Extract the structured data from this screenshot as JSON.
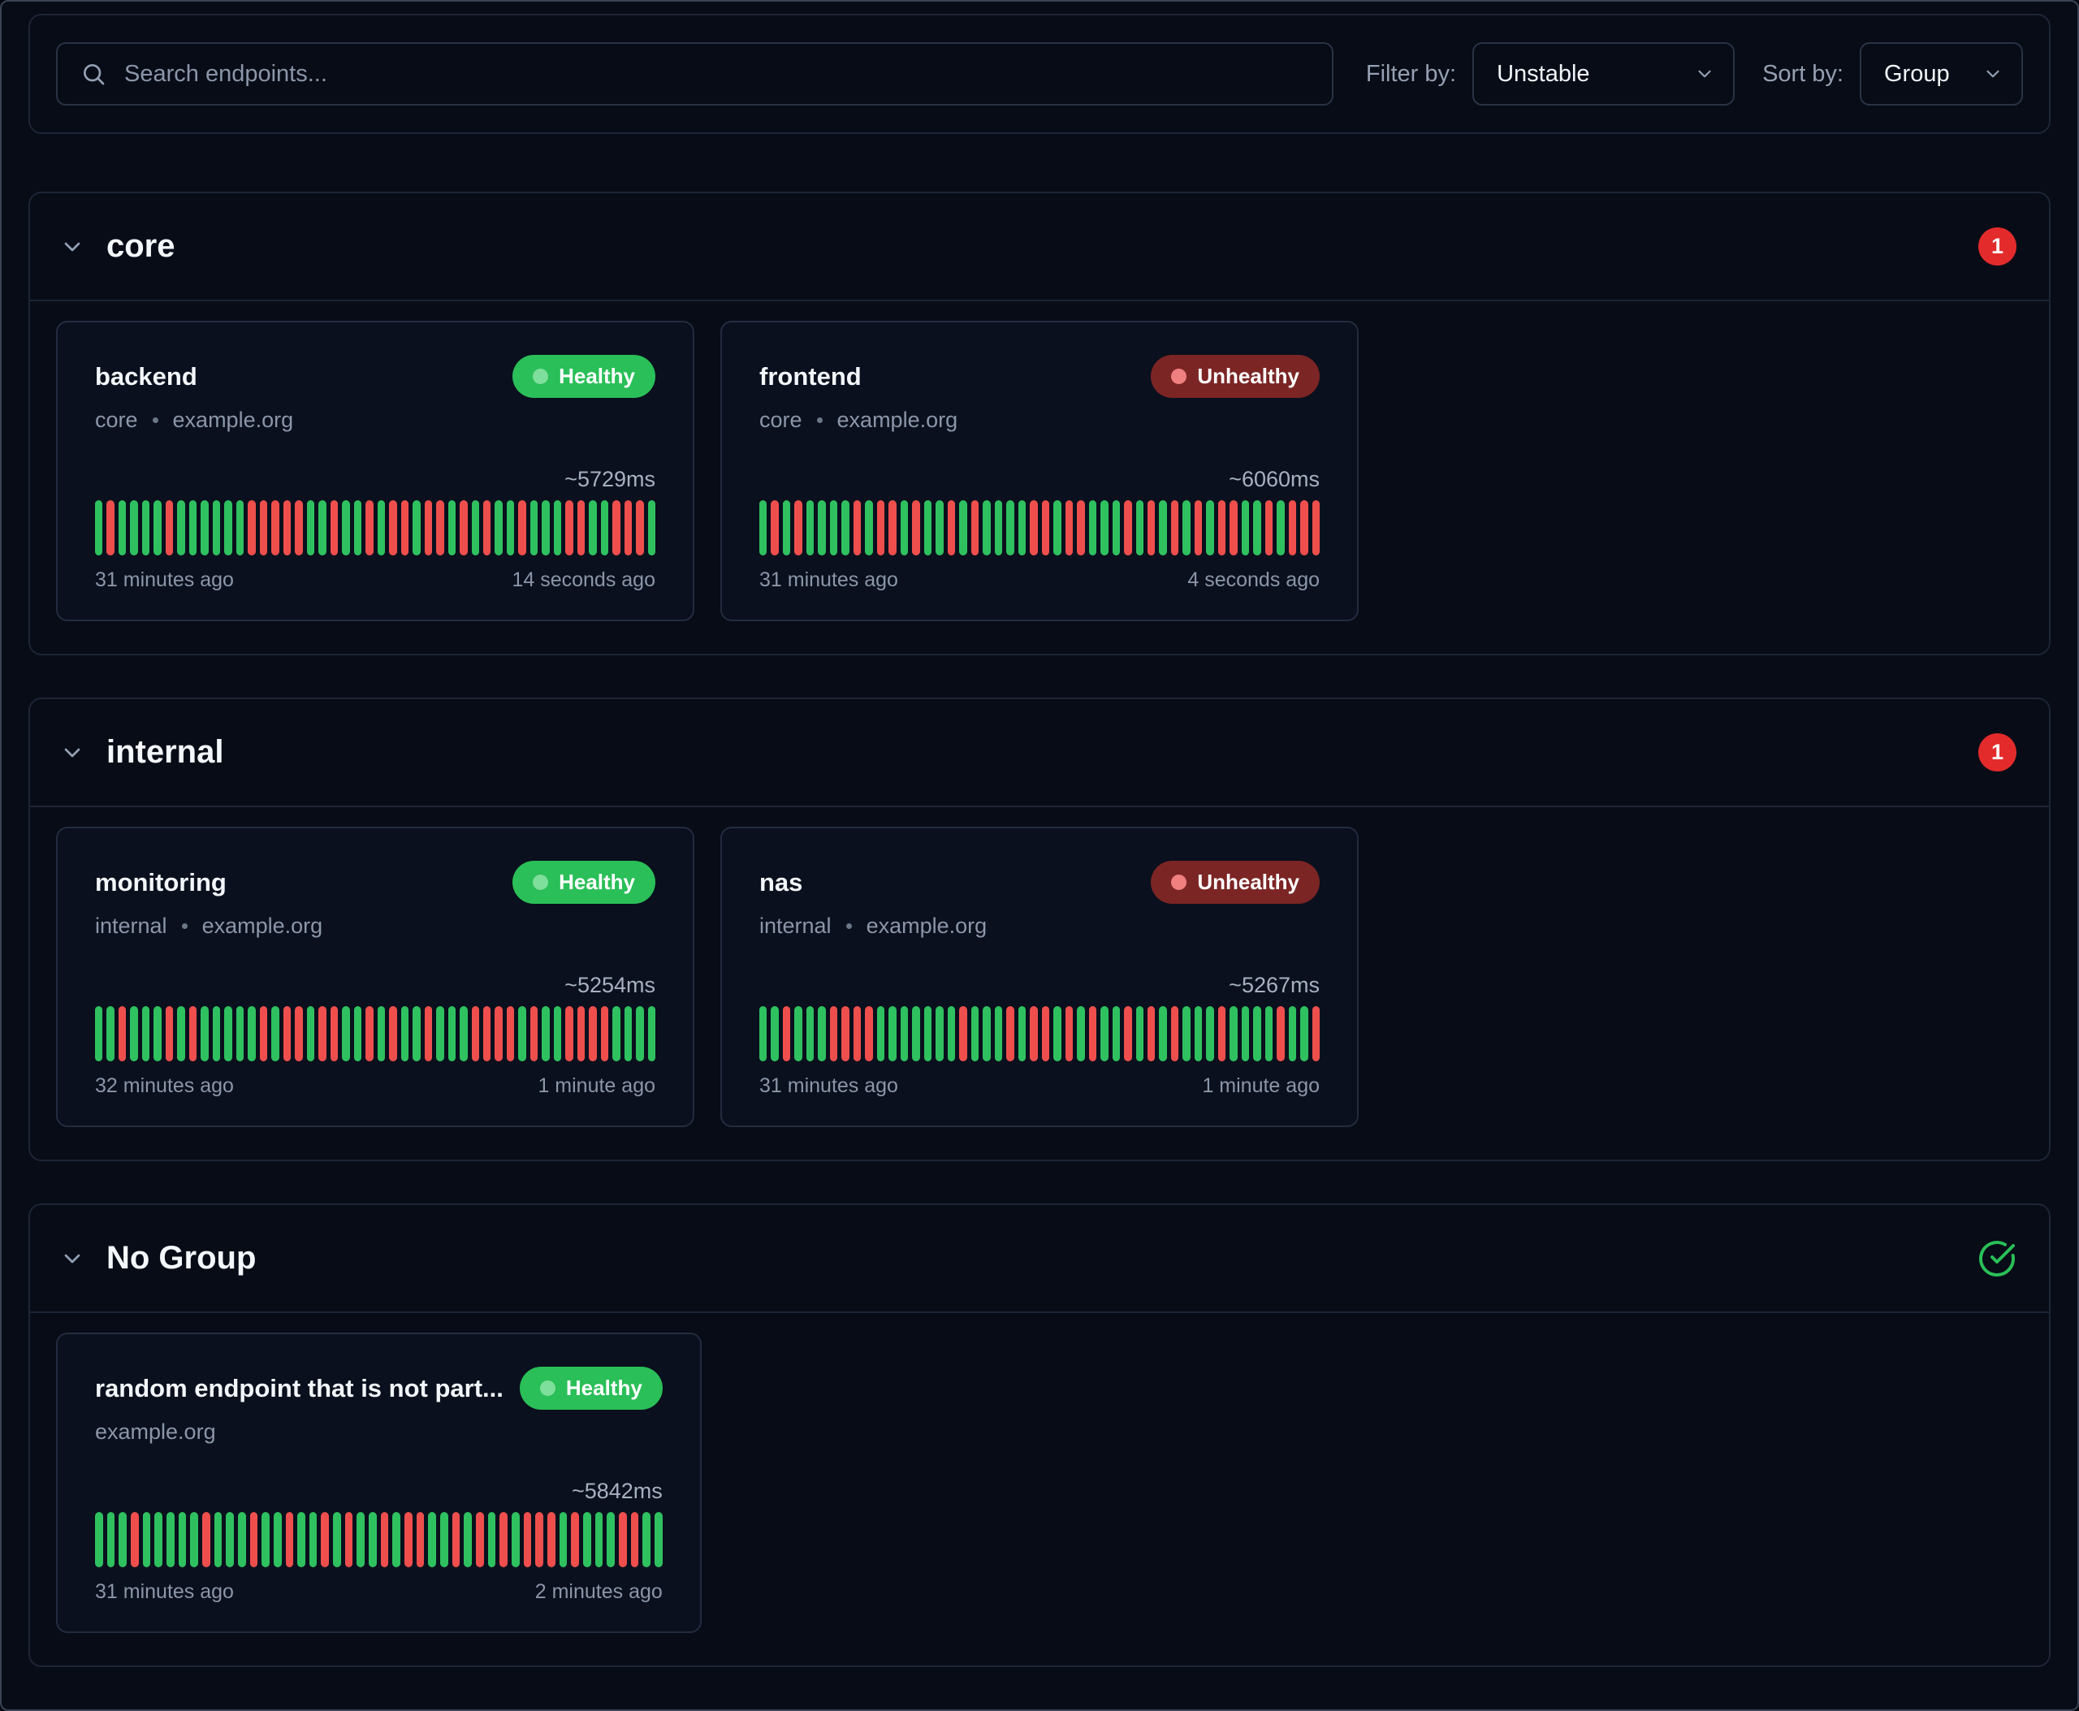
{
  "toolbar": {
    "search_placeholder": "Search endpoints...",
    "filter_label": "Filter by:",
    "filter_value": "Unstable",
    "sort_label": "Sort by:",
    "sort_value": "Group"
  },
  "colors": {
    "healthy_green": "#2abf58",
    "history_success_green": "#2fc160",
    "history_failure_red": "#ee4f4d",
    "unhealthy_badge_bg": "#7c2525",
    "unhealthy_count_badge": "#e32b2b"
  },
  "groups": [
    {
      "name": "core",
      "badge_type": "count",
      "badge": "1",
      "endpoints": [
        {
          "name": "backend",
          "status": "Healthy",
          "group": "core",
          "host": "example.org",
          "response_time": "~5729ms",
          "oldest": "31 minutes ago",
          "newest": "14 seconds ago",
          "history": "GRGGGGRGGGGGGRRRRRGGRGGRGRRGRRGRGRGGRGGGRRGGRRRG"
        },
        {
          "name": "frontend",
          "status": "Unhealthy",
          "group": "core",
          "host": "example.org",
          "response_time": "~6060ms",
          "oldest": "31 minutes ago",
          "newest": "4 seconds ago",
          "history": "GRGRGGGGRGRRGRGGRGRGGGGRRGRRGGGRGRGRGRGRRGGRGRRR"
        }
      ]
    },
    {
      "name": "internal",
      "badge_type": "count",
      "badge": "1",
      "endpoints": [
        {
          "name": "monitoring",
          "status": "Healthy",
          "group": "internal",
          "host": "example.org",
          "response_time": "~5254ms",
          "oldest": "32 minutes ago",
          "newest": "1 minute ago",
          "history": "GGRGGGRGRGGGGGRGRRGRRGGRGRGGRGGGRRRRGRGGRRRRGGGG"
        },
        {
          "name": "nas",
          "status": "Unhealthy",
          "group": "internal",
          "host": "example.org",
          "response_time": "~5267ms",
          "oldest": "31 minutes ago",
          "newest": "1 minute ago",
          "history": "GGRGGGRRRRGGGGGGGRGGGRGRRGRGRGGRGRGRGGGRGGGGRGGR"
        }
      ]
    },
    {
      "name": "No Group",
      "badge_type": "ok",
      "badge": "",
      "endpoints": [
        {
          "name": "random endpoint that is not part...",
          "status": "Healthy",
          "group": "",
          "host": "example.org",
          "response_time": "~5842ms",
          "oldest": "31 minutes ago",
          "newest": "2 minutes ago",
          "history": "GGGRGGGGGRGGGRGGRGGRGRGGRGRRGGRGRGRGRRRGRGGGRRGG"
        }
      ]
    }
  ]
}
